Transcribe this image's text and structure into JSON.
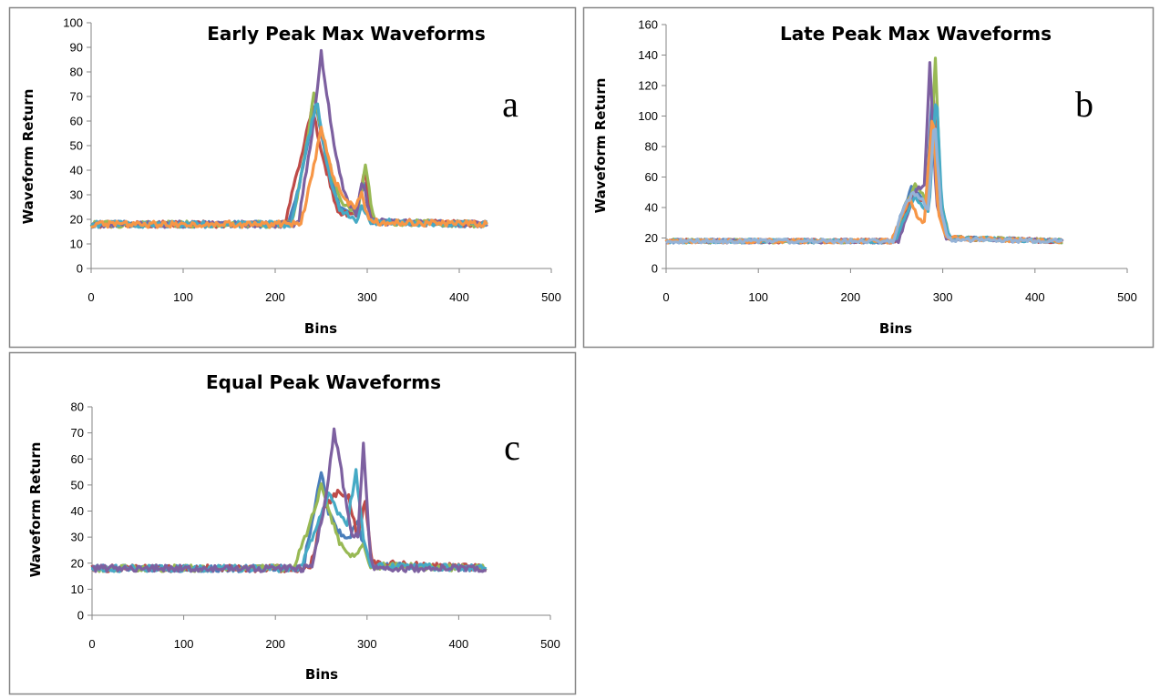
{
  "chart_data": [
    {
      "type": "line",
      "title": "Early Peak Max Waveforms",
      "annotation": "a",
      "xlabel": "Bins",
      "ylabel": "Waveform Return",
      "xlim": [
        0,
        500
      ],
      "ylim": [
        0,
        100
      ],
      "xticks": [
        0,
        100,
        200,
        300,
        400,
        500
      ],
      "yticks": [
        0,
        10,
        20,
        30,
        40,
        50,
        60,
        70,
        80,
        90,
        100
      ],
      "baseline": 18,
      "x_end": 430,
      "series": [
        {
          "name": "blue",
          "color": "#4A7EBB",
          "points": [
            [
              0,
              18
            ],
            [
              215,
              18
            ],
            [
              230,
              40
            ],
            [
              243,
              68
            ],
            [
              255,
              45
            ],
            [
              270,
              25
            ],
            [
              288,
              22
            ],
            [
              297,
              35
            ],
            [
              305,
              19
            ],
            [
              430,
              18
            ]
          ]
        },
        {
          "name": "red",
          "color": "#BE4B48",
          "points": [
            [
              0,
              18
            ],
            [
              210,
              18
            ],
            [
              225,
              40
            ],
            [
              240,
              65
            ],
            [
              252,
              45
            ],
            [
              268,
              23
            ],
            [
              288,
              22
            ],
            [
              297,
              40
            ],
            [
              306,
              19
            ],
            [
              430,
              18
            ]
          ]
        },
        {
          "name": "green",
          "color": "#98B954",
          "points": [
            [
              0,
              18
            ],
            [
              218,
              18
            ],
            [
              232,
              45
            ],
            [
              242,
              71
            ],
            [
              255,
              48
            ],
            [
              272,
              26
            ],
            [
              290,
              23
            ],
            [
              298,
              42
            ],
            [
              307,
              19
            ],
            [
              430,
              18
            ]
          ]
        },
        {
          "name": "purple",
          "color": "#7D60A0",
          "points": [
            [
              0,
              18
            ],
            [
              225,
              18
            ],
            [
              240,
              55
            ],
            [
              250,
              88
            ],
            [
              262,
              55
            ],
            [
              275,
              30
            ],
            [
              288,
              22
            ],
            [
              295,
              36
            ],
            [
              304,
              19
            ],
            [
              430,
              18
            ]
          ]
        },
        {
          "name": "cyan",
          "color": "#46AAC5",
          "points": [
            [
              0,
              18
            ],
            [
              218,
              18
            ],
            [
              232,
              45
            ],
            [
              245,
              69
            ],
            [
              256,
              42
            ],
            [
              270,
              24
            ],
            [
              288,
              20
            ],
            [
              295,
              25
            ],
            [
              303,
              19
            ],
            [
              430,
              18
            ]
          ]
        },
        {
          "name": "orange",
          "color": "#F79646",
          "points": [
            [
              0,
              18
            ],
            [
              228,
              18
            ],
            [
              240,
              38
            ],
            [
              250,
              57
            ],
            [
              262,
              38
            ],
            [
              275,
              28
            ],
            [
              285,
              25
            ],
            [
              294,
              30
            ],
            [
              302,
              19
            ],
            [
              430,
              18
            ]
          ]
        }
      ]
    },
    {
      "type": "line",
      "title": "Late Peak Max Waveforms",
      "annotation": "b",
      "xlabel": "Bins",
      "ylabel": "Waveform Return",
      "xlim": [
        0,
        500
      ],
      "ylim": [
        0,
        160
      ],
      "xticks": [
        0,
        100,
        200,
        300,
        400,
        500
      ],
      "yticks": [
        0,
        20,
        40,
        60,
        80,
        100,
        120,
        140,
        160
      ],
      "baseline": 18,
      "x_end": 430,
      "series": [
        {
          "name": "blue",
          "color": "#4A7EBB",
          "points": [
            [
              0,
              18
            ],
            [
              245,
              18
            ],
            [
              258,
              40
            ],
            [
              266,
              53
            ],
            [
              275,
              48
            ],
            [
              282,
              45
            ],
            [
              289,
              120
            ],
            [
              296,
              40
            ],
            [
              305,
              20
            ],
            [
              430,
              18
            ]
          ]
        },
        {
          "name": "red",
          "color": "#BE4B48",
          "points": [
            [
              0,
              18
            ],
            [
              248,
              18
            ],
            [
              260,
              38
            ],
            [
              268,
              50
            ],
            [
              276,
              44
            ],
            [
              282,
              45
            ],
            [
              290,
              110
            ],
            [
              297,
              40
            ],
            [
              306,
              20
            ],
            [
              430,
              18
            ]
          ]
        },
        {
          "name": "green",
          "color": "#98B954",
          "points": [
            [
              0,
              18
            ],
            [
              246,
              18
            ],
            [
              260,
              42
            ],
            [
              270,
              55
            ],
            [
              279,
              48
            ],
            [
              284,
              40
            ],
            [
              292,
              138
            ],
            [
              298,
              45
            ],
            [
              307,
              20
            ],
            [
              430,
              18
            ]
          ]
        },
        {
          "name": "purple",
          "color": "#7D60A0",
          "points": [
            [
              0,
              18
            ],
            [
              252,
              18
            ],
            [
              264,
              40
            ],
            [
              272,
              52
            ],
            [
              280,
              55
            ],
            [
              286,
              135
            ],
            [
              293,
              45
            ],
            [
              303,
              20
            ],
            [
              430,
              18
            ]
          ]
        },
        {
          "name": "cyan",
          "color": "#46AAC5",
          "points": [
            [
              0,
              18
            ],
            [
              248,
              18
            ],
            [
              262,
              38
            ],
            [
              270,
              48
            ],
            [
              279,
              40
            ],
            [
              285,
              38
            ],
            [
              293,
              118
            ],
            [
              299,
              40
            ],
            [
              307,
              20
            ],
            [
              430,
              18
            ]
          ]
        },
        {
          "name": "orange",
          "color": "#F79646",
          "points": [
            [
              0,
              18
            ],
            [
              244,
              18
            ],
            [
              256,
              35
            ],
            [
              264,
              45
            ],
            [
              272,
              35
            ],
            [
              280,
              30
            ],
            [
              289,
              105
            ],
            [
              295,
              35
            ],
            [
              304,
              20
            ],
            [
              430,
              18
            ]
          ]
        },
        {
          "name": "light-blue",
          "color": "#95B3D7",
          "points": [
            [
              0,
              18
            ],
            [
              246,
              18
            ],
            [
              258,
              40
            ],
            [
              268,
              50
            ],
            [
              278,
              45
            ],
            [
              284,
              38
            ],
            [
              291,
              100
            ],
            [
              298,
              38
            ],
            [
              306,
              19
            ],
            [
              430,
              18
            ]
          ]
        }
      ]
    },
    {
      "type": "line",
      "title": "Equal  Peak Waveforms",
      "annotation": "c",
      "xlabel": "Bins",
      "ylabel": "Waveform Return",
      "xlim": [
        0,
        500
      ],
      "ylim": [
        0,
        80
      ],
      "xticks": [
        0,
        100,
        200,
        300,
        400,
        500
      ],
      "yticks": [
        0,
        10,
        20,
        30,
        40,
        50,
        60,
        70,
        80
      ],
      "baseline": 18,
      "x_end": 430,
      "series": [
        {
          "name": "blue",
          "color": "#4A7EBB",
          "points": [
            [
              0,
              18
            ],
            [
              230,
              18
            ],
            [
              242,
              40
            ],
            [
              250,
              55
            ],
            [
              258,
              40
            ],
            [
              268,
              32
            ],
            [
              280,
              30
            ],
            [
              290,
              35
            ],
            [
              298,
              25
            ],
            [
              305,
              19
            ],
            [
              430,
              18
            ]
          ]
        },
        {
          "name": "red",
          "color": "#BE4B48",
          "points": [
            [
              0,
              18
            ],
            [
              238,
              18
            ],
            [
              252,
              40
            ],
            [
              262,
              45
            ],
            [
              270,
              48
            ],
            [
              280,
              45
            ],
            [
              290,
              30
            ],
            [
              298,
              45
            ],
            [
              305,
              20
            ],
            [
              430,
              18
            ]
          ]
        },
        {
          "name": "green",
          "color": "#98B954",
          "points": [
            [
              0,
              18
            ],
            [
              220,
              18
            ],
            [
              238,
              35
            ],
            [
              250,
              50
            ],
            [
              260,
              38
            ],
            [
              270,
              28
            ],
            [
              285,
              22
            ],
            [
              295,
              28
            ],
            [
              302,
              19
            ],
            [
              430,
              18
            ]
          ]
        },
        {
          "name": "cyan",
          "color": "#46AAC5",
          "points": [
            [
              0,
              18
            ],
            [
              228,
              18
            ],
            [
              245,
              35
            ],
            [
              258,
              47
            ],
            [
              268,
              40
            ],
            [
              278,
              35
            ],
            [
              288,
              55
            ],
            [
              296,
              30
            ],
            [
              304,
              19
            ],
            [
              430,
              18
            ]
          ]
        },
        {
          "name": "purple",
          "color": "#7D60A0",
          "points": [
            [
              0,
              18
            ],
            [
              240,
              18
            ],
            [
              255,
              45
            ],
            [
              264,
              71
            ],
            [
              272,
              55
            ],
            [
              282,
              32
            ],
            [
              290,
              30
            ],
            [
              296,
              65
            ],
            [
              303,
              25
            ],
            [
              308,
              18
            ],
            [
              430,
              18
            ]
          ]
        }
      ]
    }
  ]
}
